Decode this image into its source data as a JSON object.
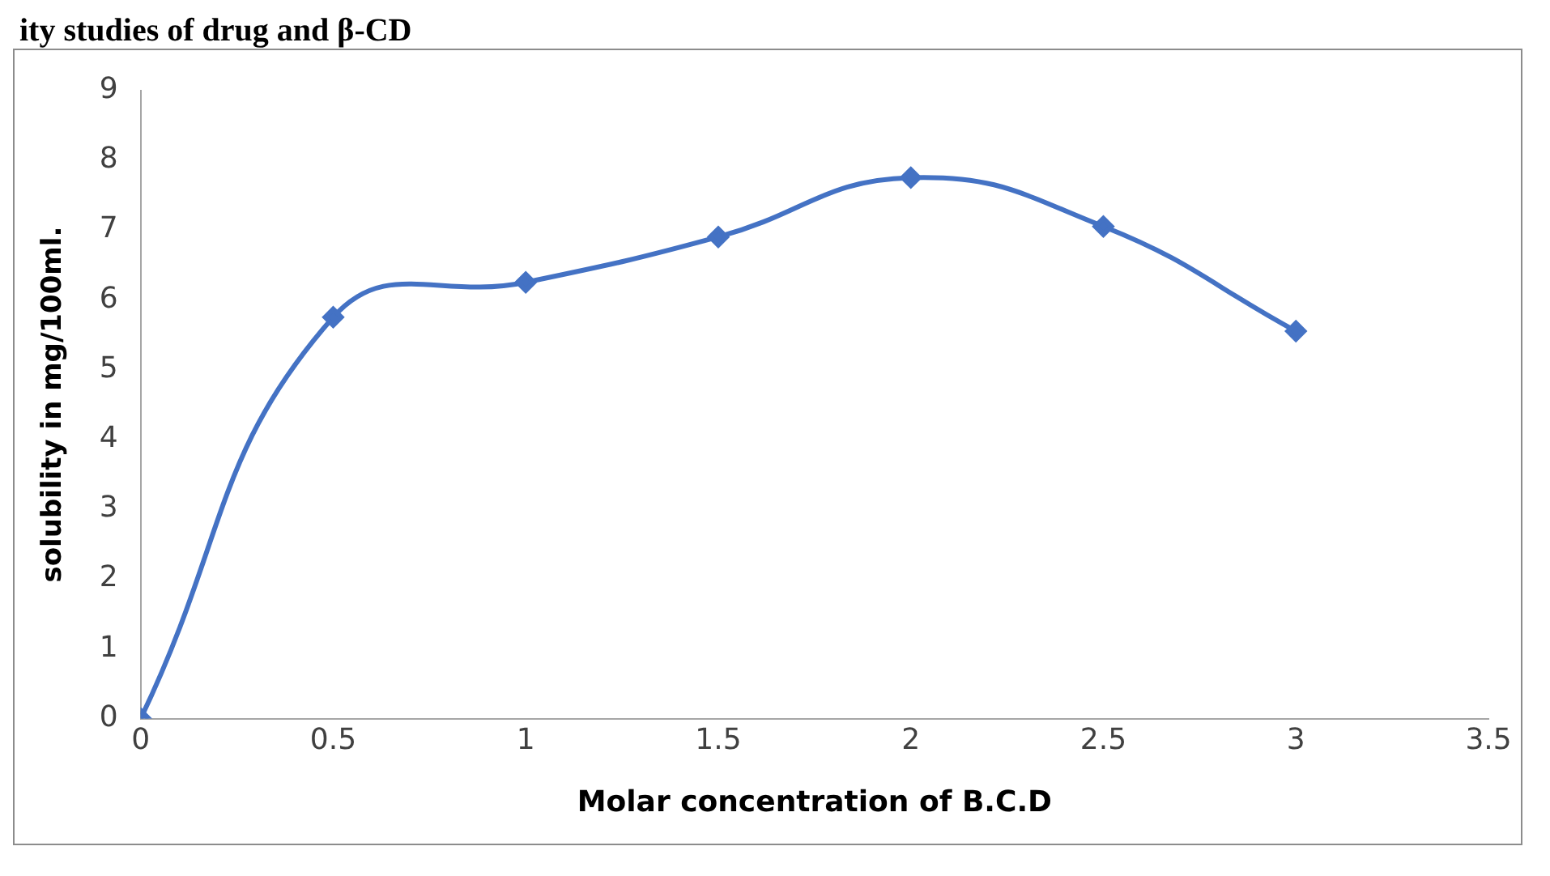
{
  "chart_data": {
    "type": "line",
    "title": "ity studies of drug and β-CD",
    "xlabel": "Molar concentration of B.C.D",
    "ylabel": "solubility in mg/100ml.",
    "x": [
      0,
      0.5,
      1,
      1.5,
      2,
      2.5,
      3
    ],
    "series": [
      {
        "color": "#4472c4",
        "values": [
          0,
          5.75,
          6.25,
          6.9,
          7.75,
          7.05,
          5.55
        ]
      }
    ],
    "xlim": [
      0,
      3.5
    ],
    "xticks": [
      0,
      0.5,
      1,
      1.5,
      2,
      2.5,
      3,
      3.5
    ],
    "ylim": [
      0,
      9
    ],
    "yticks": [
      0,
      1,
      2,
      3,
      4,
      5,
      6,
      7,
      8,
      9
    ],
    "grid": false,
    "legend": false,
    "marker": "diamond",
    "line_style": "solid"
  }
}
